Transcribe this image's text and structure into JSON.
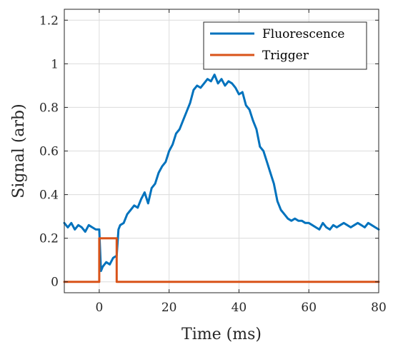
{
  "chart_data": {
    "type": "line",
    "title": "",
    "xlabel": "Time (ms)",
    "ylabel": "Signal (arb)",
    "xlim": [
      -10,
      80
    ],
    "ylim": [
      -0.05,
      1.25
    ],
    "xticks": [
      0,
      20,
      40,
      60,
      80
    ],
    "xtick_labels": [
      "0",
      "20",
      "40",
      "60",
      "80"
    ],
    "yticks": [
      0,
      0.2,
      0.4,
      0.6,
      0.8,
      1,
      1.2
    ],
    "ytick_labels": [
      "0",
      "0.2",
      "0.4",
      "0.6",
      "0.8",
      "1",
      "1.2"
    ],
    "grid": true,
    "legend_position": "top-right",
    "series": [
      {
        "name": "Fluorescence",
        "color": "#0072BD",
        "x": [
          -10,
          -9,
          -8,
          -7,
          -6,
          -5,
          -4,
          -3,
          -2,
          -1,
          0,
          0.5,
          1,
          2,
          3,
          4,
          5,
          5.5,
          6,
          7,
          8,
          9,
          10,
          11,
          12,
          13,
          14,
          15,
          16,
          17,
          18,
          19,
          20,
          21,
          22,
          23,
          24,
          25,
          26,
          27,
          28,
          29,
          30,
          31,
          32,
          33,
          34,
          35,
          36,
          37,
          38,
          39,
          40,
          41,
          42,
          43,
          44,
          45,
          46,
          47,
          48,
          49,
          50,
          51,
          52,
          53,
          54,
          55,
          56,
          57,
          58,
          59,
          60,
          61,
          62,
          63,
          64,
          65,
          66,
          67,
          68,
          69,
          70,
          71,
          72,
          73,
          74,
          75,
          76,
          77,
          78,
          79,
          80
        ],
        "y": [
          0.27,
          0.25,
          0.27,
          0.24,
          0.26,
          0.25,
          0.23,
          0.26,
          0.25,
          0.24,
          0.24,
          0.05,
          0.07,
          0.09,
          0.08,
          0.11,
          0.12,
          0.24,
          0.26,
          0.27,
          0.31,
          0.33,
          0.35,
          0.34,
          0.38,
          0.41,
          0.36,
          0.43,
          0.45,
          0.5,
          0.53,
          0.55,
          0.6,
          0.63,
          0.68,
          0.7,
          0.74,
          0.78,
          0.82,
          0.88,
          0.9,
          0.89,
          0.91,
          0.93,
          0.92,
          0.95,
          0.91,
          0.93,
          0.9,
          0.92,
          0.91,
          0.89,
          0.86,
          0.87,
          0.81,
          0.79,
          0.74,
          0.7,
          0.62,
          0.6,
          0.55,
          0.5,
          0.45,
          0.37,
          0.33,
          0.31,
          0.29,
          0.28,
          0.29,
          0.28,
          0.28,
          0.27,
          0.27,
          0.26,
          0.25,
          0.24,
          0.27,
          0.25,
          0.24,
          0.26,
          0.25,
          0.26,
          0.27,
          0.26,
          0.25,
          0.26,
          0.27,
          0.26,
          0.25,
          0.27,
          0.26,
          0.25,
          0.24
        ]
      },
      {
        "name": "Trigger",
        "color": "#D95319",
        "x": [
          -10,
          0,
          0,
          5,
          5,
          80
        ],
        "y": [
          0,
          0,
          0.2,
          0.2,
          0,
          0
        ]
      }
    ]
  }
}
